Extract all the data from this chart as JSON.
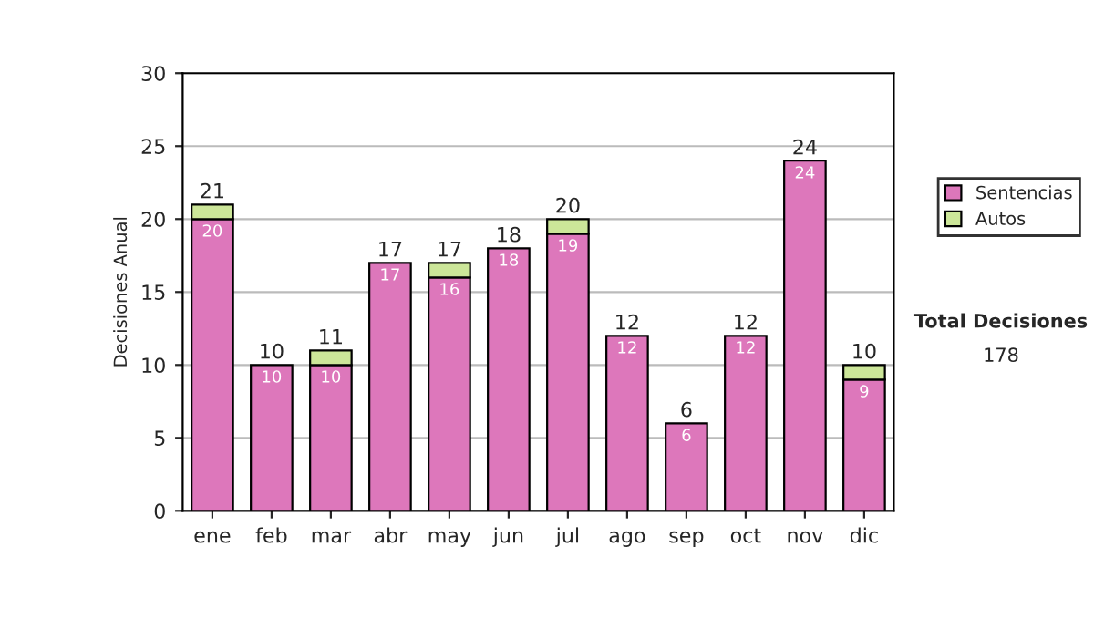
{
  "chart_data": {
    "type": "bar",
    "ylabel": "Decisiones Anual",
    "categories": [
      "ene",
      "feb",
      "mar",
      "abr",
      "may",
      "jun",
      "jul",
      "ago",
      "sep",
      "oct",
      "nov",
      "dic"
    ],
    "series": [
      {
        "name": "Sentencias",
        "color": "#dd77bb",
        "values": [
          20,
          10,
          10,
          17,
          16,
          18,
          19,
          12,
          6,
          12,
          24,
          9
        ],
        "value_labels": [
          "20",
          "10",
          "10",
          "17",
          "16",
          "18",
          "19",
          "12",
          "6",
          "12",
          "24",
          "9"
        ]
      },
      {
        "name": "Autos",
        "color": "#cce699",
        "values": [
          1,
          0,
          1,
          0,
          1,
          0,
          1,
          0,
          0,
          0,
          0,
          1
        ]
      }
    ],
    "stacked": true,
    "totals": [
      "21",
      "10",
      "11",
      "17",
      "17",
      "18",
      "20",
      "12",
      "6",
      "12",
      "24",
      "10"
    ],
    "ylim": [
      0,
      30
    ],
    "yticks": [
      0,
      5,
      10,
      15,
      20,
      25,
      30
    ],
    "grid": "y",
    "legend": "right",
    "annotations": [
      "Total Decisiones",
      "178"
    ]
  }
}
